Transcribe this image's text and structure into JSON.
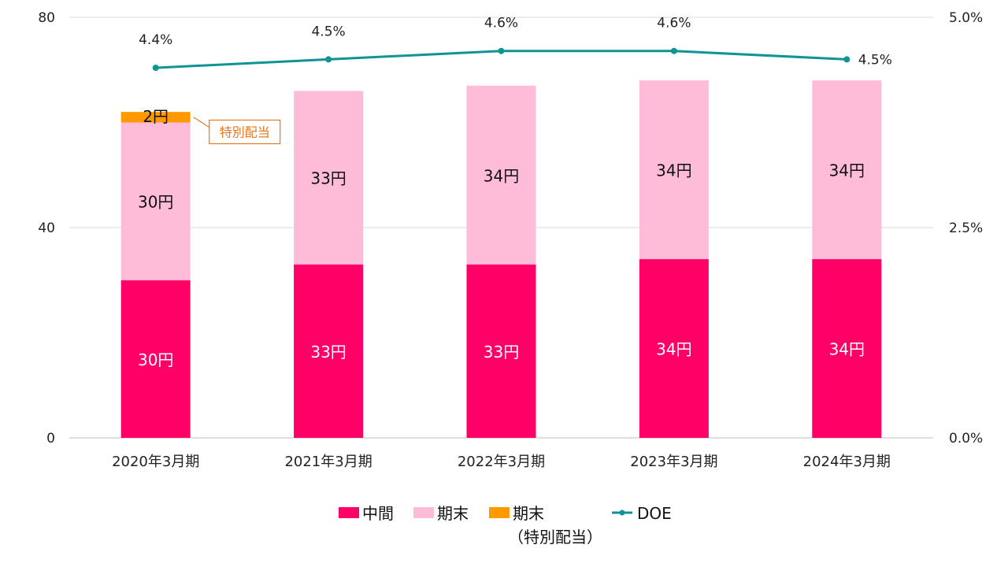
{
  "chart_data": {
    "type": "bar",
    "stacked": true,
    "categories": [
      "2020年3月期",
      "2021年3月期",
      "2022年3月期",
      "2023年3月期",
      "2024年3月期"
    ],
    "series": [
      {
        "name": "中間",
        "values": [
          30,
          33,
          33,
          34,
          34
        ],
        "labels": [
          "30円",
          "33円",
          "33円",
          "34円",
          "34円"
        ],
        "color": "#ff0066",
        "label_color": "#ffffff"
      },
      {
        "name": "期末",
        "values": [
          30,
          33,
          34,
          34,
          34
        ],
        "labels": [
          "30円",
          "33円",
          "34円",
          "34円",
          "34円"
        ],
        "color": "#ffbcd8",
        "label_color": "#111111"
      },
      {
        "name": "期末",
        "name_line2": "（特別配当）",
        "values": [
          2,
          0,
          0,
          0,
          0
        ],
        "labels": [
          "2円",
          "",
          "",
          "",
          ""
        ],
        "color": "#ff9900",
        "label_color": "#111111"
      }
    ],
    "line_series": {
      "name": "DOE",
      "values": [
        4.4,
        4.5,
        4.6,
        4.6,
        4.5
      ],
      "labels": [
        "4.4%",
        "4.5%",
        "4.6%",
        "4.6%",
        "4.5%"
      ],
      "color": "#0e9494",
      "axis": "right"
    },
    "y_left": {
      "ylim": [
        0,
        80
      ],
      "ticks": [
        "0",
        "40",
        "80"
      ]
    },
    "y_right": {
      "ylim": [
        0,
        5
      ],
      "ticks": [
        "0.0%",
        "2.5%",
        "5.0%"
      ]
    },
    "grid": true,
    "legend_position": "bottom",
    "annotation": {
      "text": "特別配当",
      "color": "#e87722"
    }
  }
}
